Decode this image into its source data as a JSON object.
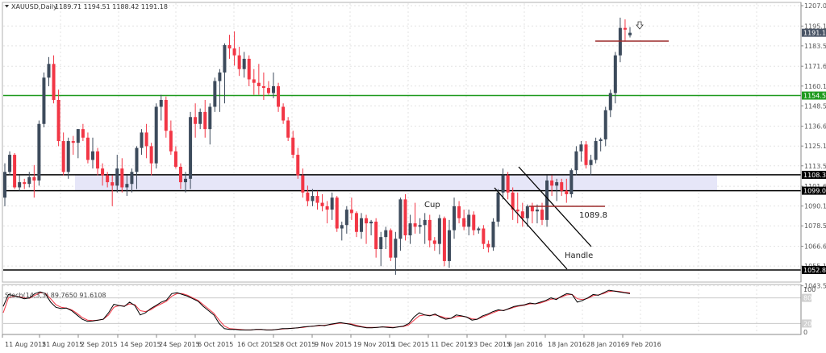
{
  "header": {
    "symbol": "XAUUSD,Daily",
    "ohlc": "1189.71 1194.51 1188.42 1191.18"
  },
  "indicator": {
    "label": "Stoch(14,3,3) 89.7650 91.6108",
    "levels": [
      "100",
      "80",
      "20",
      "0"
    ]
  },
  "colors": {
    "bull": "#3d4b5c",
    "bear": "#f23645",
    "support_line": "#000000",
    "green_line": "#1e9a1e",
    "zone_fill": "#e6e6f8",
    "marker_line": "#9b2a2a",
    "stoch_main": "#000000",
    "stoch_signal": "#f23645",
    "grid": "#e3e3e3"
  },
  "chart_data": {
    "type": "candlestick",
    "title": "XAUUSD,Daily",
    "price_axis_ticks": [
      "1207.00",
      "1195.10",
      "1183.55",
      "1171.65",
      "1160.10",
      "1148.55",
      "1136.65",
      "1125.10",
      "1113.55",
      "1101.65",
      "1090.10",
      "1078.55",
      "1066.65",
      "1055.10",
      "1043.55"
    ],
    "price_labels": [
      {
        "value": "1191.18",
        "style": "current"
      },
      {
        "value": "1154.55",
        "style": "green"
      },
      {
        "value": "1108.30",
        "style": "black"
      },
      {
        "value": "1099.05",
        "style": "black"
      },
      {
        "value": "1052.80",
        "style": "black"
      }
    ],
    "date_axis_ticks": [
      "11 Aug 2015",
      "21 Aug 2015",
      "2 Sep 2015",
      "14 Sep 2015",
      "24 Sep 2015",
      "6 Oct 2015",
      "16 Oct 2015",
      "28 Oct 2015",
      "9 Nov 2015",
      "19 Nov 2015",
      "1 Dec 2015",
      "11 Dec 2015",
      "23 Dec 2015",
      "6 Jan 2016",
      "18 Jan 2016",
      "28 Jan 2016",
      "9 Feb 2016"
    ],
    "horizontal_lines": [
      {
        "price": 1154.55,
        "color": "green"
      },
      {
        "price": 1108.3,
        "color": "black"
      },
      {
        "price": 1099.05,
        "color": "black"
      },
      {
        "price": 1052.8,
        "color": "black"
      }
    ],
    "zone": {
      "from": 1099.05,
      "to": 1108.3
    },
    "annotations": [
      {
        "text": "Cup"
      },
      {
        "text": "Handle"
      },
      {
        "text": "1089.8"
      }
    ],
    "ylim": [
      1040,
      1210
    ],
    "candles": [
      [
        1095,
        1115,
        1090,
        1110
      ],
      [
        1110,
        1122,
        1108,
        1120
      ],
      [
        1120,
        1121,
        1100,
        1101
      ],
      [
        1101,
        1108,
        1099,
        1104
      ],
      [
        1104,
        1106,
        1100,
        1103
      ],
      [
        1103,
        1110,
        1101,
        1107
      ],
      [
        1107,
        1114,
        1095,
        1105
      ],
      [
        1105,
        1140,
        1102,
        1138
      ],
      [
        1138,
        1168,
        1136,
        1165
      ],
      [
        1165,
        1177,
        1160,
        1173
      ],
      [
        1173,
        1178,
        1150,
        1152
      ],
      [
        1152,
        1158,
        1125,
        1128
      ],
      [
        1128,
        1133,
        1108,
        1110
      ],
      [
        1110,
        1130,
        1106,
        1128
      ],
      [
        1128,
        1131,
        1120,
        1127
      ],
      [
        1127,
        1135,
        1118,
        1135
      ],
      [
        1135,
        1138,
        1128,
        1130
      ],
      [
        1130,
        1133,
        1115,
        1117
      ],
      [
        1117,
        1130,
        1112,
        1122
      ],
      [
        1122,
        1124,
        1108,
        1112
      ],
      [
        1112,
        1115,
        1102,
        1108
      ],
      [
        1108,
        1110,
        1101,
        1104
      ],
      [
        1104,
        1108,
        1090,
        1102
      ],
      [
        1102,
        1120,
        1098,
        1112
      ],
      [
        1112,
        1118,
        1098,
        1101
      ],
      [
        1101,
        1108,
        1096,
        1103
      ],
      [
        1103,
        1112,
        1098,
        1110
      ],
      [
        1110,
        1125,
        1100,
        1124
      ],
      [
        1124,
        1135,
        1120,
        1133
      ],
      [
        1133,
        1138,
        1118,
        1125
      ],
      [
        1125,
        1127,
        1108,
        1115
      ],
      [
        1115,
        1150,
        1112,
        1148
      ],
      [
        1148,
        1155,
        1140,
        1152
      ],
      [
        1152,
        1154,
        1130,
        1134
      ],
      [
        1134,
        1140,
        1120,
        1122
      ],
      [
        1122,
        1125,
        1112,
        1113
      ],
      [
        1113,
        1115,
        1100,
        1104
      ],
      [
        1104,
        1110,
        1098,
        1106
      ],
      [
        1106,
        1145,
        1100,
        1142
      ],
      [
        1142,
        1150,
        1130,
        1138
      ],
      [
        1138,
        1147,
        1135,
        1145
      ],
      [
        1145,
        1152,
        1130,
        1135
      ],
      [
        1135,
        1150,
        1126,
        1148
      ],
      [
        1148,
        1165,
        1145,
        1163
      ],
      [
        1163,
        1170,
        1145,
        1168
      ],
      [
        1168,
        1185,
        1150,
        1184
      ],
      [
        1184,
        1190,
        1176,
        1182
      ],
      [
        1182,
        1192,
        1172,
        1178
      ],
      [
        1178,
        1183,
        1166,
        1170
      ],
      [
        1170,
        1180,
        1165,
        1176
      ],
      [
        1176,
        1178,
        1160,
        1164
      ],
      [
        1164,
        1170,
        1155,
        1162
      ],
      [
        1162,
        1173,
        1155,
        1160
      ],
      [
        1160,
        1168,
        1152,
        1159
      ],
      [
        1159,
        1163,
        1155,
        1156
      ],
      [
        1156,
        1168,
        1153,
        1160
      ],
      [
        1160,
        1162,
        1145,
        1148
      ],
      [
        1148,
        1150,
        1138,
        1140
      ],
      [
        1140,
        1142,
        1128,
        1130
      ],
      [
        1130,
        1134,
        1118,
        1120
      ],
      [
        1120,
        1124,
        1106,
        1108
      ],
      [
        1108,
        1112,
        1095,
        1098
      ],
      [
        1098,
        1102,
        1090,
        1093
      ],
      [
        1093,
        1100,
        1090,
        1096
      ],
      [
        1096,
        1099,
        1088,
        1092
      ],
      [
        1092,
        1097,
        1087,
        1090
      ],
      [
        1090,
        1093,
        1080,
        1088
      ],
      [
        1088,
        1098,
        1082,
        1095
      ],
      [
        1095,
        1096,
        1075,
        1077
      ],
      [
        1077,
        1081,
        1070,
        1079
      ],
      [
        1079,
        1090,
        1074,
        1088
      ],
      [
        1088,
        1095,
        1082,
        1086
      ],
      [
        1086,
        1087,
        1072,
        1075
      ],
      [
        1075,
        1086,
        1071,
        1083
      ],
      [
        1083,
        1085,
        1068,
        1080
      ],
      [
        1080,
        1082,
        1073,
        1081
      ],
      [
        1081,
        1083,
        1060,
        1065
      ],
      [
        1065,
        1075,
        1055,
        1072
      ],
      [
        1072,
        1078,
        1065,
        1076
      ],
      [
        1076,
        1077,
        1058,
        1060
      ],
      [
        1060,
        1075,
        1050,
        1071
      ],
      [
        1071,
        1095,
        1064,
        1094
      ],
      [
        1094,
        1097,
        1070,
        1073
      ],
      [
        1073,
        1085,
        1068,
        1080
      ],
      [
        1080,
        1092,
        1074,
        1078
      ],
      [
        1078,
        1083,
        1074,
        1079
      ],
      [
        1079,
        1086,
        1068,
        1082
      ],
      [
        1082,
        1085,
        1066,
        1070
      ],
      [
        1070,
        1072,
        1064,
        1068
      ],
      [
        1068,
        1085,
        1062,
        1083
      ],
      [
        1083,
        1084,
        1055,
        1058
      ],
      [
        1058,
        1082,
        1054,
        1076
      ],
      [
        1076,
        1095,
        1071,
        1090
      ],
      [
        1090,
        1093,
        1080,
        1083
      ],
      [
        1083,
        1088,
        1076,
        1078
      ],
      [
        1078,
        1088,
        1073,
        1085
      ],
      [
        1085,
        1087,
        1073,
        1076
      ],
      [
        1076,
        1078,
        1074,
        1077
      ],
      [
        1077,
        1079,
        1065,
        1068
      ],
      [
        1068,
        1070,
        1063,
        1066
      ],
      [
        1066,
        1083,
        1064,
        1081
      ],
      [
        1081,
        1100,
        1078,
        1098
      ],
      [
        1098,
        1112,
        1094,
        1108
      ],
      [
        1108,
        1110,
        1094,
        1098
      ],
      [
        1098,
        1101,
        1082,
        1088
      ],
      [
        1088,
        1098,
        1080,
        1087
      ],
      [
        1087,
        1092,
        1078,
        1083
      ],
      [
        1083,
        1091,
        1078,
        1090
      ],
      [
        1090,
        1092,
        1080,
        1087
      ],
      [
        1087,
        1091,
        1080,
        1088
      ],
      [
        1088,
        1092,
        1079,
        1082
      ],
      [
        1082,
        1108,
        1078,
        1105
      ],
      [
        1105,
        1108,
        1096,
        1102
      ],
      [
        1102,
        1106,
        1093,
        1104
      ],
      [
        1104,
        1106,
        1096,
        1099
      ],
      [
        1099,
        1106,
        1092,
        1097
      ],
      [
        1097,
        1112,
        1095,
        1111
      ],
      [
        1111,
        1125,
        1108,
        1122
      ],
      [
        1122,
        1128,
        1116,
        1126
      ],
      [
        1126,
        1128,
        1112,
        1114
      ],
      [
        1114,
        1120,
        1108,
        1117
      ],
      [
        1117,
        1130,
        1115,
        1128
      ],
      [
        1128,
        1130,
        1122,
        1129
      ],
      [
        1129,
        1148,
        1125,
        1146
      ],
      [
        1146,
        1158,
        1142,
        1156
      ],
      [
        1156,
        1180,
        1150,
        1178
      ],
      [
        1178,
        1200,
        1174,
        1194
      ],
      [
        1194,
        1199,
        1186,
        1193
      ],
      [
        1189.71,
        1194.51,
        1188.42,
        1191.18
      ]
    ],
    "stochastic": {
      "k": [
        60,
        88,
        85,
        82,
        78,
        80,
        90,
        94,
        90,
        70,
        58,
        55,
        56,
        50,
        40,
        30,
        25,
        26,
        28,
        30,
        45,
        65,
        62,
        60,
        70,
        62,
        40,
        45,
        55,
        62,
        70,
        75,
        90,
        92,
        88,
        84,
        78,
        72,
        60,
        50,
        40,
        20,
        8,
        6,
        6,
        5,
        5,
        5,
        6,
        6,
        5,
        5,
        6,
        8,
        8,
        9,
        10,
        12,
        13,
        14,
        16,
        15,
        18,
        20,
        22,
        20,
        18,
        14,
        12,
        10,
        10,
        11,
        12,
        11,
        10,
        12,
        14,
        20,
        35,
        45,
        40,
        38,
        42,
        35,
        30,
        32,
        40,
        38,
        35,
        28,
        30,
        38,
        42,
        48,
        52,
        50,
        55,
        60,
        62,
        64,
        68,
        66,
        70,
        74,
        80,
        76,
        84,
        90,
        88,
        70,
        74,
        80,
        88,
        86,
        92,
        98,
        96,
        94,
        92,
        89.765
      ],
      "d": [
        45,
        80,
        84,
        83,
        80,
        79,
        86,
        92,
        91,
        78,
        64,
        58,
        56,
        52,
        44,
        34,
        28,
        27,
        28,
        30,
        40,
        58,
        62,
        61,
        66,
        64,
        50,
        48,
        52,
        60,
        66,
        72,
        84,
        90,
        90,
        86,
        80,
        74,
        64,
        54,
        44,
        28,
        14,
        8,
        7,
        6,
        5,
        5,
        6,
        6,
        5,
        5,
        6,
        7,
        8,
        9,
        10,
        11,
        13,
        14,
        15,
        16,
        17,
        19,
        21,
        20,
        19,
        16,
        13,
        11,
        11,
        11,
        12,
        12,
        11,
        12,
        13,
        17,
        28,
        38,
        40,
        39,
        40,
        37,
        33,
        32,
        36,
        37,
        35,
        31,
        30,
        35,
        40,
        45,
        50,
        51,
        54,
        58,
        61,
        63,
        66,
        66,
        68,
        72,
        77,
        78,
        82,
        87,
        88,
        78,
        76,
        79,
        85,
        87,
        90,
        95,
        96,
        95,
        93,
        91.6108
      ]
    }
  }
}
